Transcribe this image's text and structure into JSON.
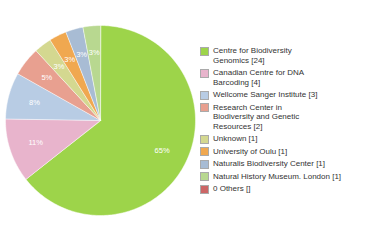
{
  "chart_data": {
    "type": "pie",
    "categories": [
      "Centre for Biodiversity\nGenomics [24]",
      "Canadian Centre for DNA\nBarcoding [4]",
      "Wellcome Sanger Institute [3]",
      "Research Center in\nBiodiversity and Genetic\nResources [2]",
      "Unknown [1]",
      "University of Oulu [1]",
      "Naturalis Biodiversity Center [1]",
      "Natural History Museum. London [1]",
      "0 Others []"
    ],
    "values": [
      65,
      11,
      8,
      5,
      3,
      3,
      3,
      3,
      0
    ],
    "value_labels": [
      "65%",
      "11%",
      "8%",
      "5%",
      "3%",
      "3%",
      "3%",
      "3%",
      null
    ],
    "colors": [
      "#9dd44a",
      "#e8b4cc",
      "#b8cce4",
      "#e8a090",
      "#d4d890",
      "#f0a850",
      "#a8bcd4",
      "#b8d890",
      "#cc6666"
    ],
    "data_labels": true,
    "legend": "right"
  }
}
